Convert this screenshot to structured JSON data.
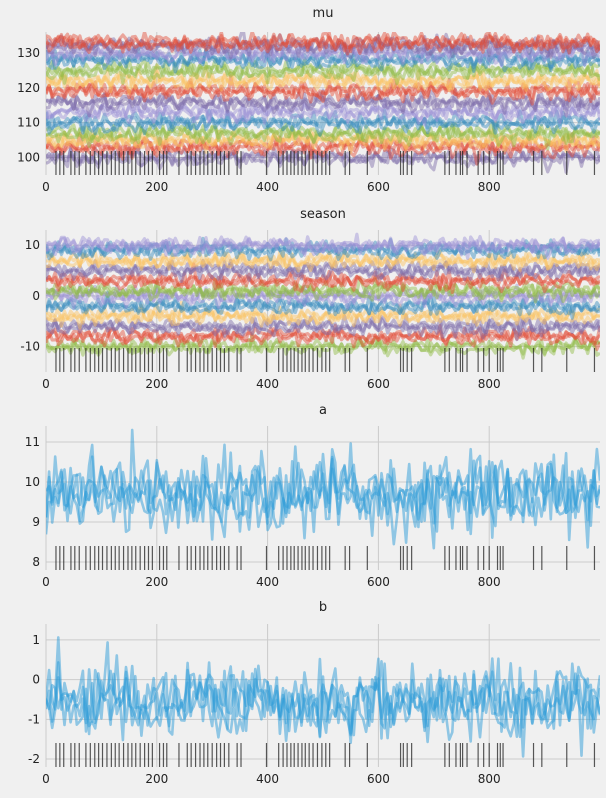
{
  "chart_data": [
    {
      "type": "line",
      "title": "mu",
      "xlabel": "",
      "ylabel": "",
      "xlim": [
        0,
        1000
      ],
      "ylim": [
        95,
        136
      ],
      "xticks": [
        0,
        200,
        400,
        600,
        800
      ],
      "yticks": [
        100,
        110,
        120,
        130
      ],
      "grid": true,
      "series_count": 14,
      "band_levels": [
        100,
        103,
        105,
        107,
        110,
        113,
        116,
        119,
        122,
        125,
        128,
        130,
        132,
        133
      ],
      "noise_scale": 2.2,
      "colors": [
        "#7a68a6",
        "#e24a33",
        "#fbc15e",
        "#8eba42",
        "#348abd",
        "#988ed5"
      ]
    },
    {
      "type": "line",
      "title": "season",
      "xlabel": "",
      "ylabel": "",
      "xlim": [
        0,
        1000
      ],
      "ylim": [
        -15,
        13
      ],
      "xticks": [
        0,
        200,
        400,
        600,
        800
      ],
      "yticks": [
        -10,
        0,
        10
      ],
      "grid": true,
      "series_count": 12,
      "band_levels": [
        -10,
        -8,
        -6,
        -4,
        -2,
        0,
        1,
        3,
        5,
        7,
        9,
        10
      ],
      "noise_scale": 1.4,
      "colors": [
        "#8eba42",
        "#e24a33",
        "#7a68a6",
        "#fbc15e",
        "#348abd",
        "#988ed5"
      ]
    },
    {
      "type": "line",
      "title": "a",
      "xlabel": "",
      "ylabel": "",
      "xlim": [
        0,
        1000
      ],
      "ylim": [
        7.8,
        11.4
      ],
      "xticks": [
        0,
        200,
        400,
        600,
        800
      ],
      "yticks": [
        8,
        9,
        10,
        11
      ],
      "grid": true,
      "series_count": 1,
      "mean": 9.7,
      "noise_scale": 0.45,
      "colors": [
        "#2e9bd8"
      ]
    },
    {
      "type": "line",
      "title": "b",
      "xlabel": "",
      "ylabel": "",
      "xlim": [
        0,
        1000
      ],
      "ylim": [
        -2.2,
        1.4
      ],
      "xticks": [
        0,
        200,
        400,
        600,
        800
      ],
      "yticks": [
        -2,
        -1,
        0,
        1
      ],
      "grid": true,
      "series_count": 1,
      "mean": -0.55,
      "noise_scale": 0.45,
      "colors": [
        "#2e9bd8"
      ]
    }
  ],
  "divergence_draws": [
    18,
    25,
    32,
    45,
    52,
    60,
    72,
    80,
    88,
    95,
    102,
    110,
    118,
    125,
    132,
    140,
    148,
    155,
    162,
    170,
    178,
    185,
    192,
    205,
    212,
    218,
    240,
    255,
    262,
    270,
    278,
    285,
    292,
    300,
    308,
    315,
    322,
    330,
    345,
    352,
    398,
    420,
    428,
    435,
    442,
    448,
    455,
    462,
    468,
    475,
    482,
    490,
    498,
    505,
    512,
    540,
    548,
    580,
    640,
    645,
    652,
    660,
    720,
    728,
    740,
    748,
    752,
    760,
    780,
    790,
    800,
    815,
    820,
    825,
    880,
    895,
    940,
    990
  ]
}
